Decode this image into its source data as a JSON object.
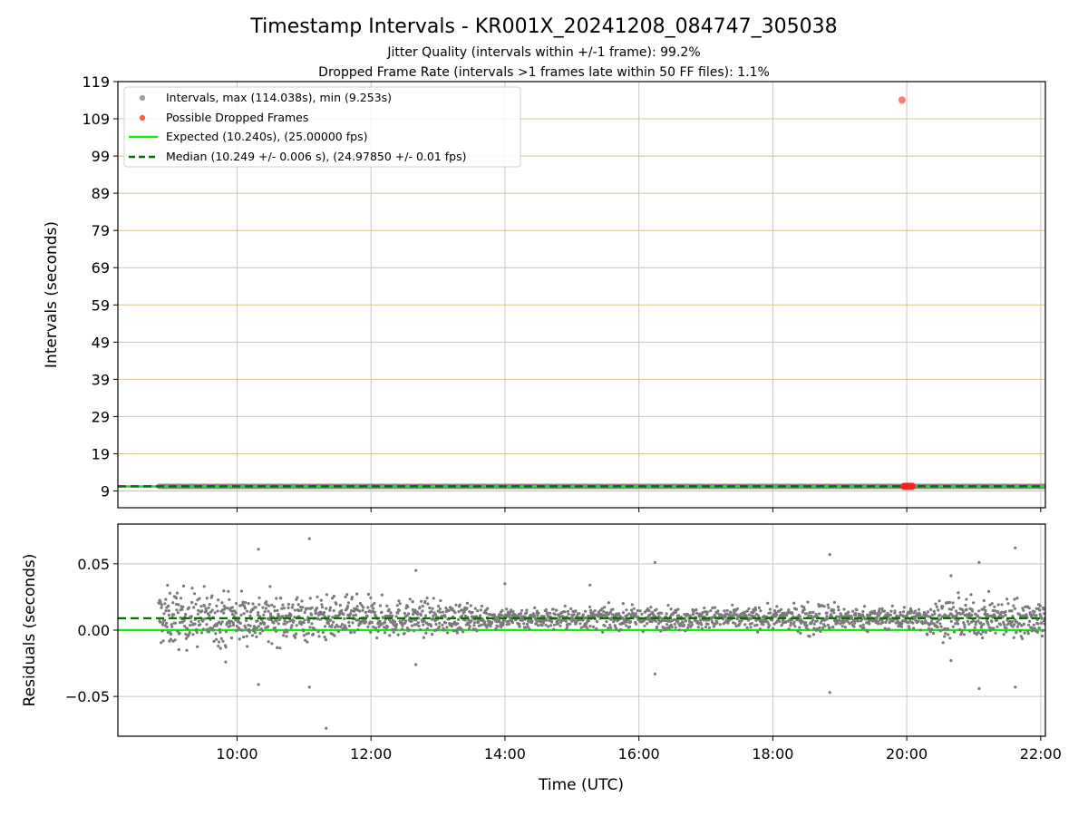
{
  "chart_data": [
    {
      "type": "scatter",
      "title": "Timestamp Intervals - KR001X_20241208_084747_305038",
      "subtitle_lines": [
        "Jitter Quality (intervals within +/-1 frame): 99.2%",
        "Dropped Frame Rate (intervals >1 frames late within 50 FF files): 1.1%"
      ],
      "xlabel": "",
      "ylabel": "Intervals (seconds)",
      "xlim_hours": [
        8.22,
        22.07
      ],
      "ylim": [
        4.5,
        119
      ],
      "yticks": [
        9,
        19,
        29,
        39,
        49,
        59,
        69,
        79,
        89,
        99,
        109,
        119
      ],
      "ytick_labels": [
        "9",
        "19",
        "29",
        "39",
        "49",
        "59",
        "69",
        "79",
        "89",
        "99",
        "109",
        "119"
      ],
      "legend_position": "top-left",
      "legend": [
        {
          "label": "Intervals, max (114.038s), min (9.253s)",
          "kind": "marker",
          "color": "#a0a0a0"
        },
        {
          "label": "Possible Dropped Frames",
          "kind": "marker",
          "color": "#ff5a5a"
        },
        {
          "label": "Expected (10.240s), (25.00000 fps)",
          "kind": "line",
          "color": "#17e617"
        },
        {
          "label": "Median (10.249 +/- 0.006 s), (24.97850 +/- 0.01 fps)",
          "kind": "dashed",
          "color": "#0b7a0b"
        }
      ],
      "series": [
        {
          "name": "Intervals",
          "x_hours_range": [
            8.83,
            22.07
          ],
          "y_range": [
            9.253,
            11.0
          ],
          "median": 10.249
        },
        {
          "name": "Possible Dropped Frames",
          "points": [
            {
              "x": 19.93,
              "y": 114.038
            },
            {
              "x": 19.96,
              "y": 10.25
            },
            {
              "x": 19.99,
              "y": 10.25
            },
            {
              "x": 20.02,
              "y": 10.25
            },
            {
              "x": 20.05,
              "y": 10.25
            },
            {
              "x": 20.08,
              "y": 10.25
            }
          ]
        },
        {
          "name": "Expected",
          "y": 10.24
        },
        {
          "name": "Median",
          "y": 10.249
        }
      ]
    },
    {
      "type": "scatter",
      "title": "",
      "xlabel": "Time (UTC)",
      "ylabel": "Residuals (seconds)",
      "xlim_hours": [
        8.22,
        22.07
      ],
      "ylim": [
        -0.08,
        0.08
      ],
      "yticks": [
        0.05,
        0.0,
        -0.05
      ],
      "ytick_labels": [
        "0.05",
        "0.00",
        "−0.05"
      ],
      "xticks_hours": [
        10,
        12,
        14,
        16,
        18,
        20,
        22
      ],
      "xtick_labels": [
        "10:00",
        "12:00",
        "14:00",
        "16:00",
        "18:00",
        "20:00",
        "22:00"
      ],
      "series": [
        {
          "name": "Residuals",
          "x_hours_range": [
            8.83,
            22.07
          ],
          "y_range": [
            -0.074,
            0.069
          ]
        },
        {
          "name": "Median offset",
          "y": 0.009
        },
        {
          "name": "Expected",
          "y": 0.0
        }
      ],
      "outliers": [
        {
          "x": 10.32,
          "y": 0.061
        },
        {
          "x": 11.08,
          "y": 0.069
        },
        {
          "x": 11.33,
          "y": -0.074
        },
        {
          "x": 11.08,
          "y": -0.043
        },
        {
          "x": 10.32,
          "y": -0.041
        },
        {
          "x": 16.24,
          "y": 0.051
        },
        {
          "x": 16.24,
          "y": -0.033
        },
        {
          "x": 18.85,
          "y": 0.057
        },
        {
          "x": 18.85,
          "y": -0.047
        },
        {
          "x": 21.08,
          "y": 0.051
        },
        {
          "x": 21.62,
          "y": 0.062
        },
        {
          "x": 21.08,
          "y": -0.044
        },
        {
          "x": 21.62,
          "y": -0.043
        },
        {
          "x": 9.83,
          "y": -0.024
        },
        {
          "x": 12.67,
          "y": 0.045
        },
        {
          "x": 12.67,
          "y": -0.026
        },
        {
          "x": 14.0,
          "y": 0.035
        },
        {
          "x": 15.27,
          "y": 0.034
        },
        {
          "x": 20.66,
          "y": 0.041
        },
        {
          "x": 20.66,
          "y": -0.023
        }
      ]
    }
  ],
  "colors": {
    "points": "#7a7a7a",
    "dropped": "#ff1f1f",
    "expected": "#17e617",
    "median": "#0b6b0b",
    "hgrid_top": "#d4c48e",
    "grid": "#c8c8c8"
  }
}
